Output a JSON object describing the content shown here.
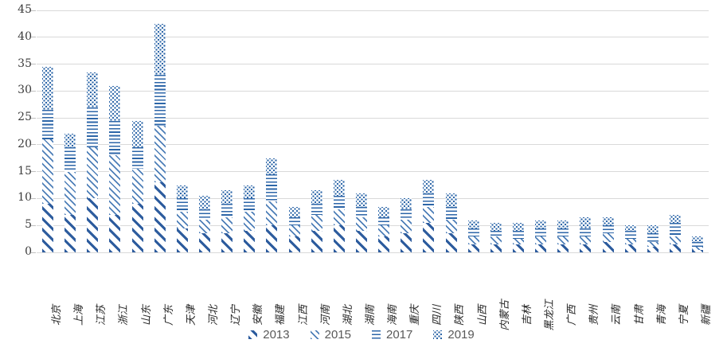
{
  "chart_data": {
    "type": "bar",
    "stacked": true,
    "title": "",
    "xlabel": "",
    "ylabel": "",
    "ylim": [
      0,
      45
    ],
    "ytick_step": 5,
    "grid": true,
    "legend_position": "bottom",
    "categories": [
      "北京",
      "上海",
      "江苏",
      "浙江",
      "山东",
      "广东",
      "天津",
      "河北",
      "辽宁",
      "安徽",
      "福建",
      "江西",
      "河南",
      "湖北",
      "湖南",
      "海南",
      "重庆",
      "四川",
      "陕西",
      "山西",
      "内蒙古",
      "吉林",
      "黑龙江",
      "广西",
      "贵州",
      "云南",
      "甘肃",
      "青海",
      "宁夏",
      "新疆"
    ],
    "series": [
      {
        "name": "2013",
        "pattern": "diagonal-heavy",
        "values": [
          9,
          7,
          10,
          7,
          9,
          13,
          4.5,
          3.5,
          3.5,
          4,
          5,
          3,
          4,
          5,
          4,
          3,
          3.5,
          5.5,
          3.5,
          1.5,
          1.5,
          1.5,
          1.5,
          1.5,
          1.5,
          2,
          1.5,
          1,
          1.5,
          0.5
        ]
      },
      {
        "name": "2015",
        "pattern": "diagonal-light",
        "values": [
          12,
          8,
          9.5,
          11,
          6.5,
          10.5,
          3,
          2.5,
          3,
          3.5,
          4.5,
          2,
          3,
          3,
          2.5,
          2,
          2.5,
          3,
          2.5,
          1.5,
          1.5,
          1,
          1.5,
          1.5,
          1.5,
          1.5,
          1,
          1,
          1.5,
          0.5
        ]
      },
      {
        "name": "2017",
        "pattern": "horizontal-lines",
        "values": [
          5.5,
          4.5,
          7.5,
          6.5,
          4,
          9.5,
          2.5,
          2,
          2.5,
          2.5,
          5,
          1.5,
          2,
          2.5,
          2,
          1.5,
          2,
          2.5,
          2.5,
          1.5,
          1,
          1.5,
          1.5,
          1.5,
          1.5,
          1.5,
          1.5,
          1.5,
          2.5,
          1
        ]
      },
      {
        "name": "2019",
        "pattern": "dots",
        "values": [
          8,
          2.5,
          6.5,
          6.5,
          5,
          9.5,
          2.5,
          2.5,
          2.5,
          2.5,
          3,
          2,
          2.5,
          3,
          2.5,
          2,
          2,
          2.5,
          2.5,
          1.5,
          1.5,
          1.5,
          1.5,
          1.5,
          2,
          1.5,
          1,
          1.5,
          1.5,
          1
        ]
      }
    ],
    "totals": [
      34.5,
      22,
      33.5,
      31,
      24.5,
      42.5,
      12.5,
      10.5,
      11.5,
      12.5,
      17.5,
      8.5,
      11.5,
      13.5,
      11,
      8.5,
      10,
      13.5,
      11,
      6,
      5.5,
      5.5,
      6,
      6,
      6.5,
      6.5,
      5,
      5,
      7,
      3
    ]
  },
  "colors": {
    "bar_blue": "#2d66a8",
    "bar_blue_dark": "#2d5c9e",
    "bar_blue_light": "#4e7fb8",
    "gridline": "#d9d9d9",
    "axis_text": "#3b3b3b",
    "category_text": "#262626",
    "legend_text": "#595959",
    "background": "#ffffff"
  },
  "legend": {
    "items": [
      {
        "label": "2013"
      },
      {
        "label": "2015"
      },
      {
        "label": "2017"
      },
      {
        "label": "2019"
      }
    ]
  }
}
